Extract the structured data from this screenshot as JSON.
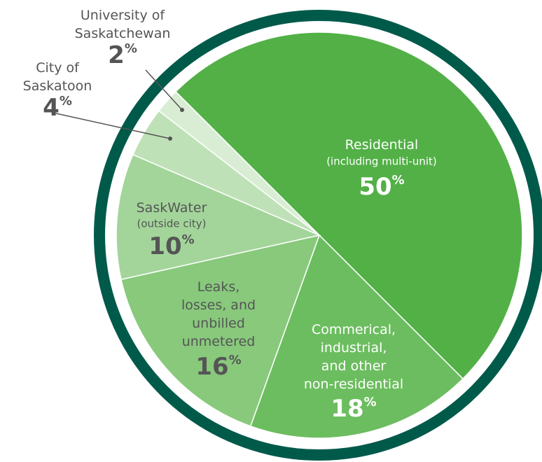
{
  "chart_data": {
    "type": "pie",
    "categories": [
      "Residential",
      "Commerical,\nindustrial,\nand other\nnon-residential",
      "Leaks,\nlosses, and\nunbilled\nunmetered",
      "SaskWater",
      "City of\nSaskatoon",
      "University of\nSaskatchewan"
    ],
    "sublabels": [
      "(including multi-unit)",
      null,
      null,
      "(outside city)",
      null,
      null
    ],
    "values": [
      50,
      18,
      16,
      10,
      4,
      2
    ],
    "value_labels": [
      "50%",
      "18%",
      "16%",
      "10%",
      "4%",
      "2%"
    ],
    "colors": [
      "#52b047",
      "#6cbd5f",
      "#88c97c",
      "#a3d59a",
      "#bfe1b7",
      "#d9edd4"
    ],
    "ring_color": "#005a4a"
  }
}
